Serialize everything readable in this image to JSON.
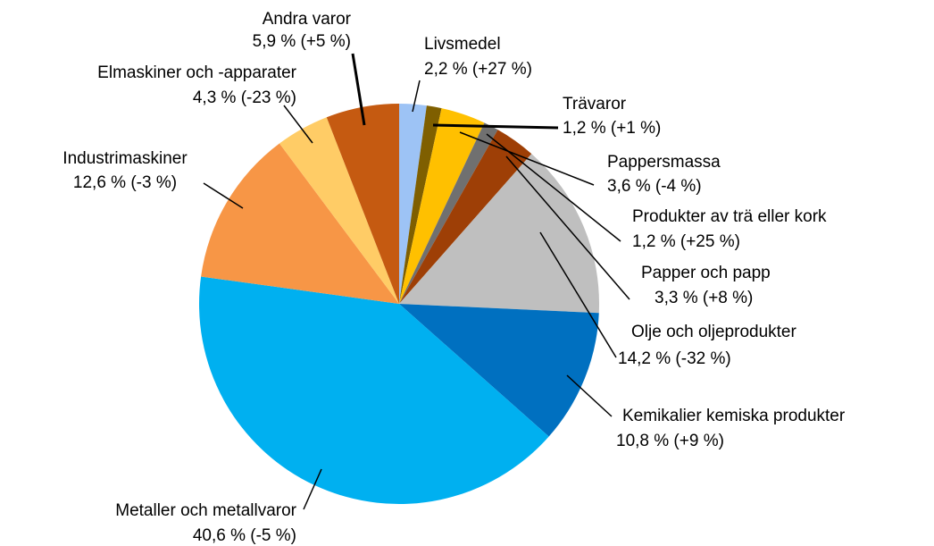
{
  "chart_data": {
    "type": "pie",
    "categories": [
      "Livsmedel",
      "Trävaror",
      "Pappersmassa",
      "Produkter av trä eller kork",
      "Papper och papp",
      "Olje och oljeprodukter",
      "Kemikalier kemiska produkter",
      "Metaller och metallvaror",
      "Industrimaskiner",
      "Elmaskiner och -apparater",
      "Andra varor"
    ],
    "values": [
      2.2,
      1.2,
      3.6,
      1.2,
      3.3,
      14.2,
      10.8,
      40.6,
      12.6,
      4.3,
      5.9
    ],
    "value_labels": [
      "2,2 % (+27 %)",
      "1,2 % (+1 %)",
      "3,6 % (-4 %)",
      "1,2 % (+25 %)",
      "3,3 % (+8 %)",
      "14,2 % (-32 %)",
      "10,8 % (+9 %)",
      "40,6 % (-5 %)",
      "12,6 % (-3 %)",
      "4,3 % (-23 %)",
      "5,9 % (+5 %)"
    ],
    "colors": [
      "#9dc3f5",
      "#7f5f00",
      "#ffc000",
      "#707070",
      "#9e3f06",
      "#bfbfbf",
      "#0070c0",
      "#00b0f0",
      "#f79646",
      "#ffcc66",
      "#c55a11"
    ]
  }
}
